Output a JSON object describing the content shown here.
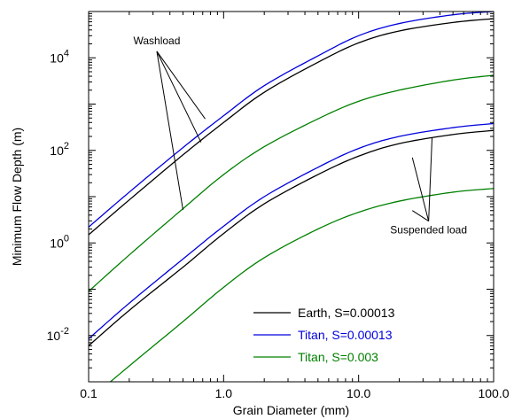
{
  "chart_data": {
    "type": "line",
    "title": "",
    "xlabel": "Grain Diameter (mm)",
    "ylabel": "Minimum Flow Depth (m)",
    "x_scale": "log",
    "y_scale": "log",
    "xlim": [
      0.1,
      100
    ],
    "ylim": [
      0.001,
      100000
    ],
    "grid": false,
    "legend_position": "bottom-right",
    "x_ticks": [
      {
        "value": 0.1,
        "label": "0.1"
      },
      {
        "value": 1,
        "label": "1.0"
      },
      {
        "value": 10,
        "label": "10.0"
      },
      {
        "value": 100,
        "label": "100.0"
      }
    ],
    "y_ticks": [
      {
        "value": 0.01,
        "base": "10",
        "exp": "-2"
      },
      {
        "value": 1,
        "base": "10",
        "exp": "0"
      },
      {
        "value": 100,
        "base": "10",
        "exp": "2"
      },
      {
        "value": 10000,
        "base": "10",
        "exp": "4"
      }
    ],
    "x": [
      0.1,
      0.2,
      0.5,
      1,
      2,
      5,
      10,
      20,
      50,
      100
    ],
    "series": [
      {
        "name": "Earth, S=0.00013",
        "color": "#000000",
        "group": "washload",
        "values": [
          1.5,
          8.5,
          80,
          400,
          1800,
          8000,
          21000,
          38000,
          58000,
          70000
        ]
      },
      {
        "name": "Titan, S=0.00013",
        "color": "#0000dd",
        "group": "washload",
        "values": [
          2.2,
          12.5,
          115,
          560,
          2500,
          11000,
          30000,
          55000,
          85000,
          100000
        ]
      },
      {
        "name": "Titan, S=0.003",
        "color": "#008000",
        "group": "washload",
        "values": [
          0.09,
          0.55,
          5.5,
          30,
          120,
          480,
          1150,
          2000,
          3300,
          4200
        ]
      },
      {
        "name": "Earth, S=0.00013",
        "color": "#000000",
        "group": "suspended",
        "values": [
          0.006,
          0.035,
          0.3,
          1.6,
          7,
          30,
          75,
          140,
          220,
          270
        ]
      },
      {
        "name": "Titan, S=0.00013",
        "color": "#0000dd",
        "group": "suspended",
        "values": [
          0.0085,
          0.05,
          0.45,
          2.3,
          10,
          43,
          110,
          200,
          310,
          380
        ]
      },
      {
        "name": "Titan, S=0.003",
        "color": "#008000",
        "group": "suspended",
        "values": [
          0.0004,
          0.0022,
          0.02,
          0.11,
          0.48,
          2,
          4.6,
          8,
          12.5,
          15
        ]
      }
    ],
    "annotations": [
      {
        "label": "Washload",
        "group": "washload",
        "anchor_x": 0.32,
        "anchor_y": 18000,
        "targets": [
          [
            0.73,
            480
          ],
          [
            0.68,
            150
          ],
          [
            0.5,
            5.2
          ]
        ]
      },
      {
        "label": "Suspended load",
        "group": "suspended",
        "anchor_x": 33,
        "anchor_y": 1.6,
        "targets": [
          [
            25,
            70
          ],
          [
            35,
            190
          ],
          [
            25,
            5
          ]
        ]
      }
    ],
    "legend": [
      {
        "label": "Earth, S=0.00013",
        "color": "#000000"
      },
      {
        "label": "Titan, S=0.00013",
        "color": "#0000dd"
      },
      {
        "label": "Titan, S=0.003",
        "color": "#008000"
      }
    ]
  }
}
